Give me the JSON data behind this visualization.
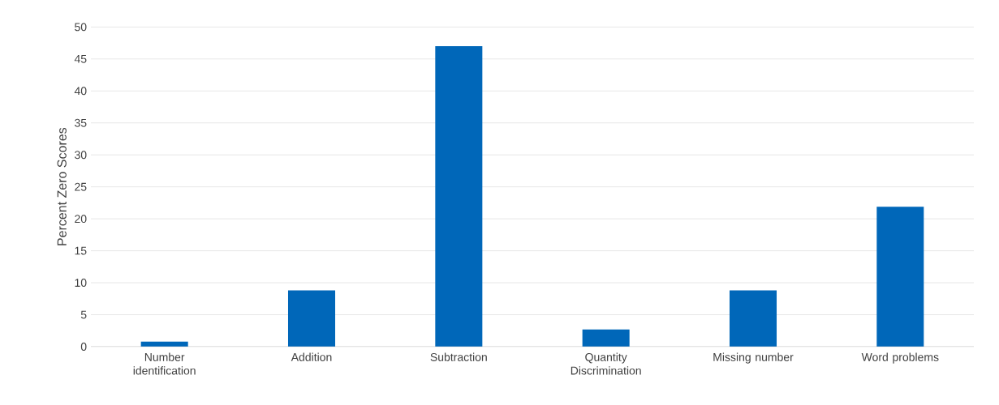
{
  "chart_data": {
    "type": "bar",
    "ylabel": "Percent Zero Scores",
    "categories": [
      "Number identification",
      "Addition",
      "Subtraction",
      "Quantity Discrimination",
      "Missing number",
      "Word problems"
    ],
    "values": [
      0.8,
      8.8,
      47.0,
      2.7,
      8.8,
      21.9
    ],
    "color": "#0067b9",
    "ylim": [
      0,
      50
    ],
    "yticks": [
      0,
      5,
      10,
      15,
      20,
      25,
      30,
      35,
      40,
      45,
      50
    ],
    "grid": "y"
  }
}
